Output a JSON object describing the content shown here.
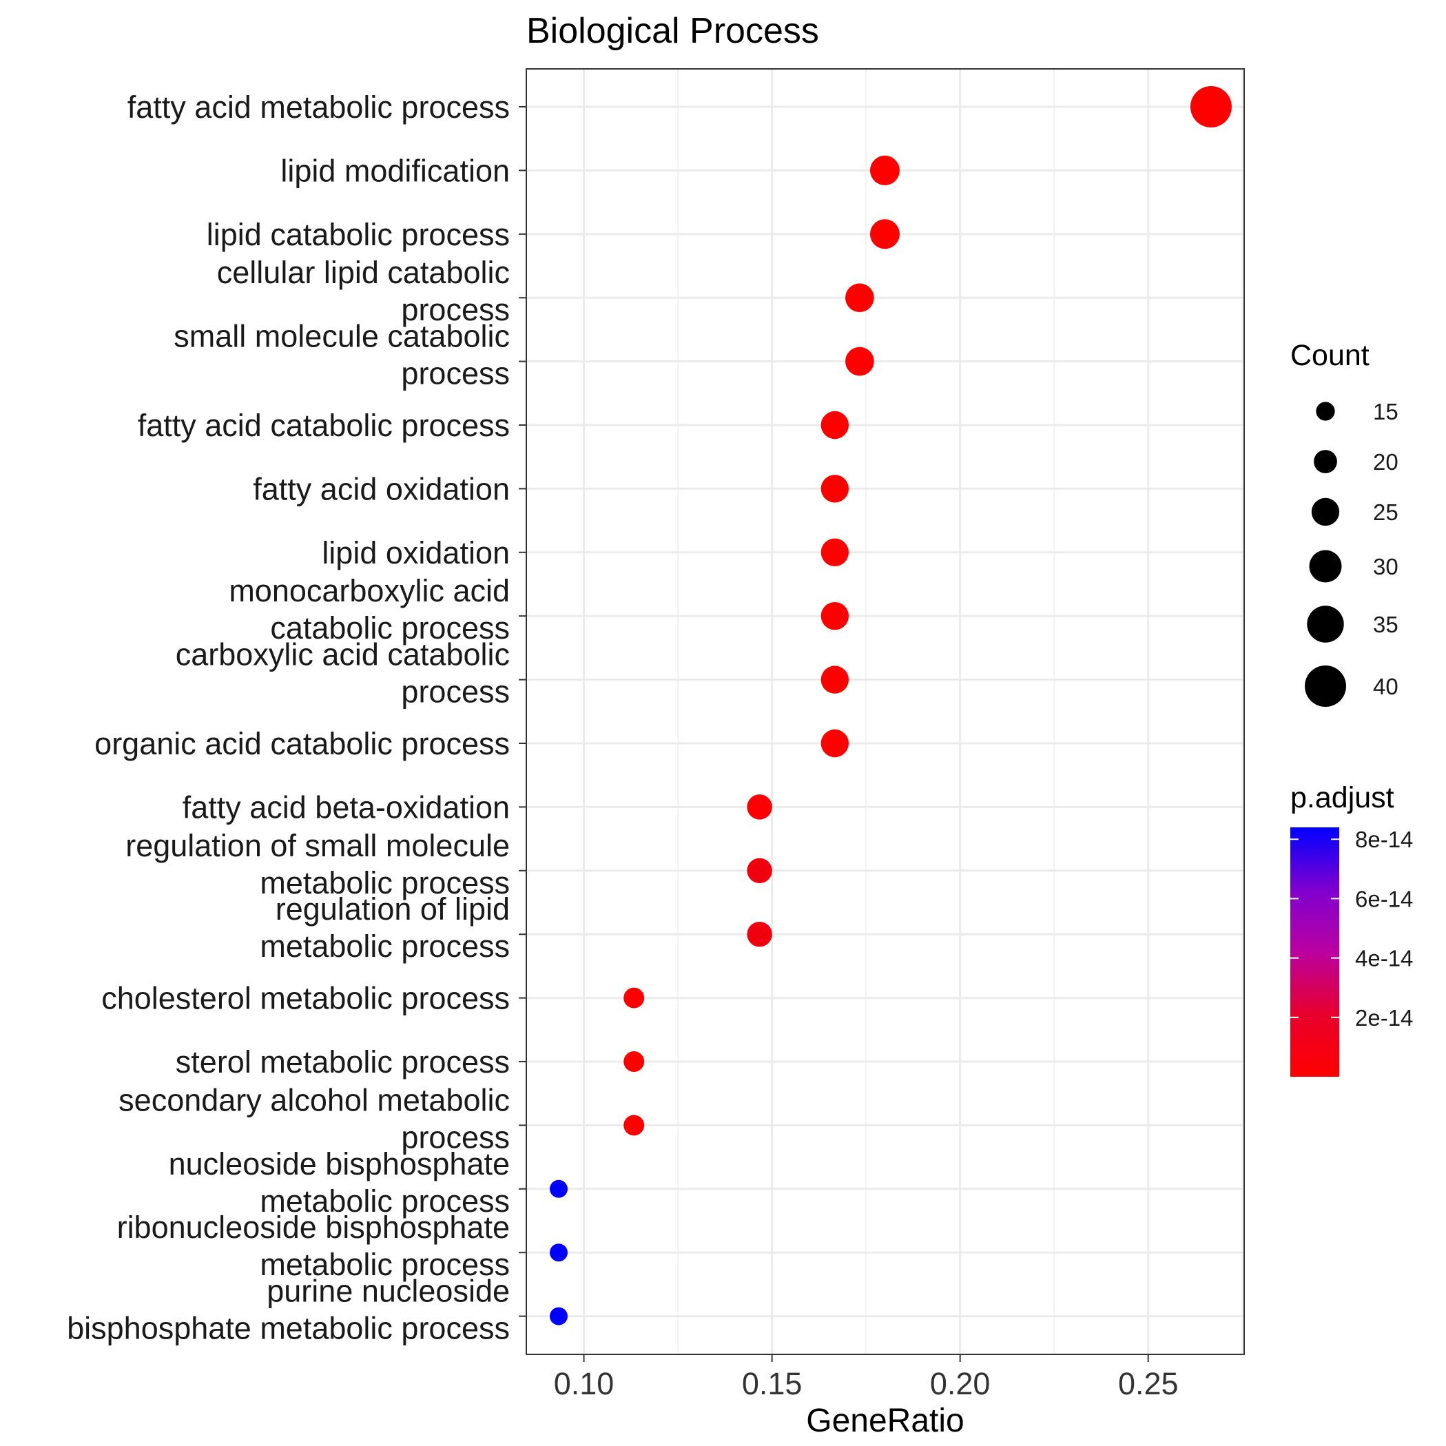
{
  "chart_data": {
    "type": "scatter",
    "title": "Biological Process",
    "xlabel": "GeneRatio",
    "ylabel": "",
    "xlim": [
      0.0847,
      0.2755
    ],
    "xticks": [
      0.1,
      0.15,
      0.2,
      0.25
    ],
    "xtick_labels": [
      "0.10",
      "0.15",
      "0.20",
      "0.25"
    ],
    "grid": true,
    "colors": {
      "low": "#ff0000",
      "high": "#0000ff"
    },
    "points": [
      {
        "label": [
          "fatty acid metabolic process"
        ],
        "x": 0.2667,
        "count": 40,
        "p_adjust": 0
      },
      {
        "label": [
          "lipid modification"
        ],
        "x": 0.18,
        "count": 27,
        "p_adjust": 0
      },
      {
        "label": [
          "lipid catabolic process"
        ],
        "x": 0.18,
        "count": 27,
        "p_adjust": 0
      },
      {
        "label": [
          "cellular lipid catabolic",
          "process"
        ],
        "x": 0.1733,
        "count": 26,
        "p_adjust": 0
      },
      {
        "label": [
          "small molecule catabolic",
          "process"
        ],
        "x": 0.1733,
        "count": 26,
        "p_adjust": 0
      },
      {
        "label": [
          "fatty acid catabolic process"
        ],
        "x": 0.1667,
        "count": 25,
        "p_adjust": 0
      },
      {
        "label": [
          "fatty acid oxidation"
        ],
        "x": 0.1667,
        "count": 25,
        "p_adjust": 0
      },
      {
        "label": [
          "lipid oxidation"
        ],
        "x": 0.1667,
        "count": 25,
        "p_adjust": 0
      },
      {
        "label": [
          "monocarboxylic acid",
          "catabolic process"
        ],
        "x": 0.1667,
        "count": 25,
        "p_adjust": 0
      },
      {
        "label": [
          "carboxylic acid catabolic",
          "process"
        ],
        "x": 0.1667,
        "count": 25,
        "p_adjust": 0
      },
      {
        "label": [
          "organic acid catabolic process"
        ],
        "x": 0.1667,
        "count": 25,
        "p_adjust": 0
      },
      {
        "label": [
          "fatty acid beta-oxidation"
        ],
        "x": 0.1467,
        "count": 22,
        "p_adjust": 1e-15
      },
      {
        "label": [
          "regulation of small molecule",
          "metabolic process"
        ],
        "x": 0.1467,
        "count": 22,
        "p_adjust": 5e-15
      },
      {
        "label": [
          "regulation of lipid",
          "metabolic process"
        ],
        "x": 0.1467,
        "count": 22,
        "p_adjust": 5e-15
      },
      {
        "label": [
          "cholesterol metabolic process"
        ],
        "x": 0.1133,
        "count": 17,
        "p_adjust": 1e-16
      },
      {
        "label": [
          "sterol metabolic process"
        ],
        "x": 0.1133,
        "count": 17,
        "p_adjust": 1e-16
      },
      {
        "label": [
          "secondary alcohol metabolic",
          "process"
        ],
        "x": 0.1133,
        "count": 17,
        "p_adjust": 1e-16
      },
      {
        "label": [
          "nucleoside bisphosphate",
          "metabolic process"
        ],
        "x": 0.0933,
        "count": 14,
        "p_adjust": 8.4e-14
      },
      {
        "label": [
          "ribonucleoside bisphosphate",
          "metabolic process"
        ],
        "x": 0.0933,
        "count": 14,
        "p_adjust": 8.4e-14
      },
      {
        "label": [
          "purine nucleoside",
          "bisphosphate metabolic process"
        ],
        "x": 0.0933,
        "count": 14,
        "p_adjust": 8.4e-14
      }
    ],
    "legend": {
      "size_title": "Count",
      "size_values": [
        15,
        20,
        25,
        30,
        35,
        40
      ],
      "size_labels": [
        "15",
        "20",
        "25",
        "30",
        "35",
        "40"
      ],
      "color_title": "p.adjust",
      "color_range": [
        0,
        8.4e-14
      ],
      "color_values": [
        2e-14,
        4e-14,
        6e-14,
        8e-14
      ],
      "color_labels": [
        "2e-14",
        "4e-14",
        "6e-14",
        "8e-14"
      ]
    }
  }
}
